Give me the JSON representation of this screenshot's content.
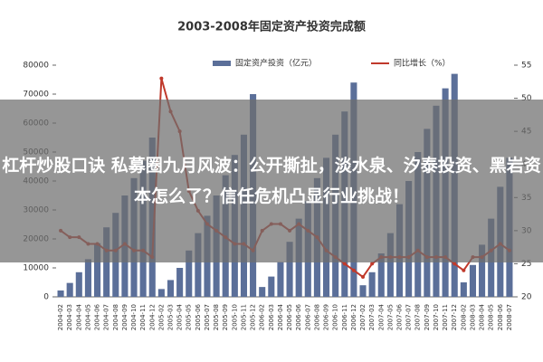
{
  "chart_data": {
    "type": "bar_line",
    "title": "2003-2008年固定资产投资完成额",
    "categories": [
      "2004-02",
      "2004-03",
      "2004-04",
      "2004-05",
      "2004-06",
      "2004-07",
      "2004-08",
      "2004-09",
      "2004-10",
      "2004-11",
      "2004-12",
      "2005-02",
      "2005-03",
      "2005-04",
      "2005-05",
      "2005-06",
      "2005-07",
      "2005-08",
      "2005-09",
      "2005-10",
      "2005-11",
      "2005-12",
      "2006-02",
      "2006-03",
      "2006-04",
      "2006-05",
      "2006-06",
      "2006-07",
      "2006-08",
      "2006-09",
      "2006-10",
      "2006-11",
      "2006-12",
      "2007-02",
      "2007-03",
      "2007-04",
      "2007-05",
      "2007-06",
      "2007-07",
      "2007-08",
      "2007-09",
      "2007-10",
      "2007-11",
      "2007-12",
      "2008-02",
      "2008-03",
      "2008-04",
      "2008-05",
      "2008-06",
      "2008-07"
    ],
    "series": [
      {
        "name": "固定资产投资（亿元）",
        "color": "#5b6f99",
        "values": [
          2200,
          4800,
          8500,
          13000,
          18500,
          24000,
          29000,
          35000,
          41000,
          47000,
          55000,
          2700,
          5800,
          10000,
          16000,
          22000,
          28000,
          35000,
          42000,
          49000,
          56000,
          70000,
          3400,
          7000,
          12000,
          19000,
          27000,
          33000,
          41000,
          48000,
          56000,
          64000,
          74000,
          4000,
          8500,
          15000,
          22000,
          32000,
          40000,
          50000,
          58000,
          66000,
          72000,
          77000,
          5000,
          11000,
          18000,
          27000,
          38000,
          48000
        ]
      },
      {
        "name": "同比增长（%）",
        "color": "#c0392b",
        "axis": "y2",
        "values": [
          30,
          29,
          29,
          28,
          28,
          27,
          27,
          28,
          27,
          27,
          26,
          53,
          48,
          45,
          36,
          33,
          31,
          30,
          29,
          28,
          28,
          27,
          30,
          31,
          31,
          30,
          31,
          30,
          29,
          27,
          26,
          25,
          24,
          23,
          25,
          26,
          26,
          26,
          26,
          27,
          26,
          26,
          26,
          25,
          24,
          26,
          26,
          27,
          28,
          27
        ]
      }
    ],
    "ylim": [
      0,
      80000
    ],
    "yticks": [
      0,
      10000,
      20000,
      30000,
      40000,
      50000,
      60000,
      70000,
      80000
    ],
    "y2lim": [
      20,
      55
    ],
    "y2ticks": [
      20,
      25,
      30,
      35,
      40,
      45,
      50,
      55
    ]
  },
  "overlay": {
    "text": "杠杆炒股口诀 私募圈九月风波：公开撕扯，淡水泉、汐泰投资、黑岩资本怎么了？信任危机凸显行业挑战！"
  }
}
